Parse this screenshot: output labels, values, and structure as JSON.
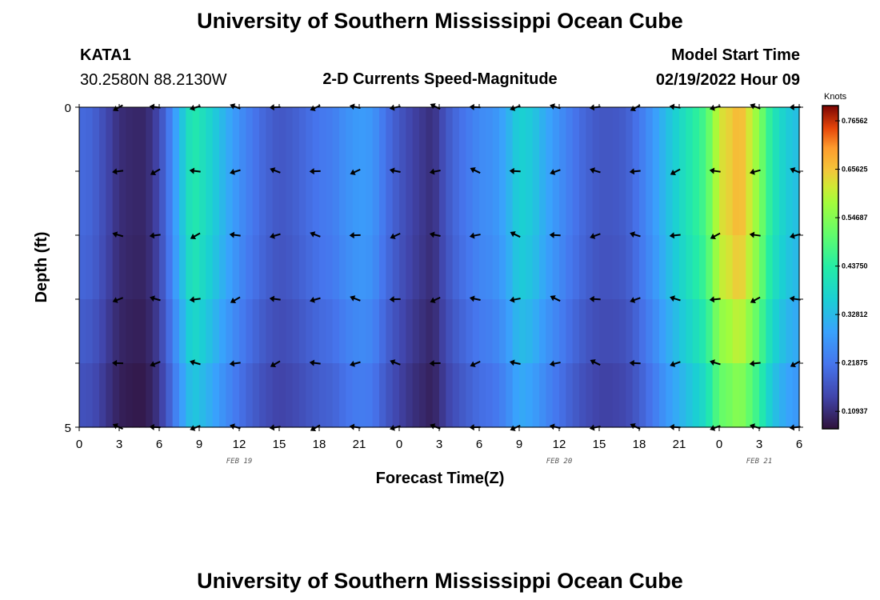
{
  "title": "University of Southern Mississippi Ocean Cube",
  "station": "KATA1",
  "coordinates": "30.2580N  88.2130W",
  "chart_subtitle": "2-D Currents Speed-Magnitude",
  "model_start_label": "Model Start Time",
  "model_start_value": "02/19/2022 Hour 09",
  "footer_title": "University of Southern Mississippi Ocean Cube",
  "chart_data": {
    "type": "heatmap",
    "title": "2-D Currents Speed-Magnitude",
    "xlabel": "Forecast Time(Z)",
    "ylabel": "Depth (ft)",
    "units": "Knots",
    "x_range": [
      0,
      54
    ],
    "y_range": [
      0,
      5
    ],
    "x_tick_values": [
      0,
      3,
      6,
      9,
      12,
      15,
      18,
      21,
      24,
      27,
      30,
      33,
      36,
      39,
      42,
      45,
      48,
      51,
      54
    ],
    "x_tick_labels": [
      "0",
      "3",
      "6",
      "9",
      "12",
      "15",
      "18",
      "21",
      "0",
      "3",
      "6",
      "9",
      "12",
      "15",
      "18",
      "21",
      "0",
      "3",
      "6"
    ],
    "date_labels": [
      {
        "x": 12,
        "text": "FEB 19"
      },
      {
        "x": 36,
        "text": "FEB 20"
      },
      {
        "x": 51,
        "text": "FEB 21"
      }
    ],
    "y_tick_labels": [
      "0",
      "5"
    ],
    "depth_rows": [
      0,
      1,
      2,
      3,
      4,
      5
    ],
    "colorbar_ticks": [
      "0.76562",
      "0.65625",
      "0.54687",
      "0.43750",
      "0.32812",
      "0.21875",
      "0.10937"
    ],
    "colorbar_tick_values": [
      0.76562,
      0.65625,
      0.54687,
      0.4375,
      0.32812,
      0.21875,
      0.10937
    ],
    "colorbar_range": [
      0.07,
      0.8
    ],
    "profile": [
      [
        0,
        0.2
      ],
      [
        1,
        0.19
      ],
      [
        2,
        0.15
      ],
      [
        3,
        0.11
      ],
      [
        4,
        0.1
      ],
      [
        5,
        0.1
      ],
      [
        6,
        0.15
      ],
      [
        6.7,
        0.22
      ],
      [
        7.5,
        0.32
      ],
      [
        8.5,
        0.43
      ],
      [
        9.5,
        0.39
      ],
      [
        11,
        0.31
      ],
      [
        12,
        0.26
      ],
      [
        13,
        0.22
      ],
      [
        14,
        0.19
      ],
      [
        15,
        0.17
      ],
      [
        16,
        0.18
      ],
      [
        17,
        0.2
      ],
      [
        18,
        0.22
      ],
      [
        19,
        0.23
      ],
      [
        20,
        0.26
      ],
      [
        21,
        0.28
      ],
      [
        22,
        0.27
      ],
      [
        23,
        0.21
      ],
      [
        24,
        0.17
      ],
      [
        25,
        0.14
      ],
      [
        26,
        0.12
      ],
      [
        26.5,
        0.11
      ],
      [
        27,
        0.14
      ],
      [
        28,
        0.19
      ],
      [
        29,
        0.22
      ],
      [
        30,
        0.25
      ],
      [
        31,
        0.26
      ],
      [
        32,
        0.3
      ],
      [
        33,
        0.37
      ],
      [
        34,
        0.35
      ],
      [
        35,
        0.3
      ],
      [
        36,
        0.26
      ],
      [
        37,
        0.22
      ],
      [
        38,
        0.19
      ],
      [
        39,
        0.17
      ],
      [
        40,
        0.17
      ],
      [
        41,
        0.18
      ],
      [
        42,
        0.22
      ],
      [
        43,
        0.27
      ],
      [
        44,
        0.33
      ],
      [
        45,
        0.38
      ],
      [
        46,
        0.43
      ],
      [
        47,
        0.48
      ],
      [
        47.5,
        0.55
      ],
      [
        48,
        0.62
      ],
      [
        49,
        0.65
      ],
      [
        49.5,
        0.68
      ],
      [
        50,
        0.64
      ],
      [
        51,
        0.55
      ],
      [
        51.5,
        0.48
      ],
      [
        52,
        0.42
      ],
      [
        53,
        0.36
      ],
      [
        54,
        0.33
      ]
    ],
    "row_factor": [
      1.0,
      1.0,
      0.97,
      0.9,
      0.82
    ],
    "arrows_x": [
      3,
      5.8,
      8.8,
      11.8,
      14.8,
      17.8,
      20.8,
      23.8,
      26.8,
      29.8,
      32.8,
      35.8,
      38.8,
      41.8,
      44.8,
      47.8,
      50.8,
      53.8
    ],
    "arrow_depths": [
      0,
      1,
      2,
      3,
      4,
      5
    ]
  }
}
